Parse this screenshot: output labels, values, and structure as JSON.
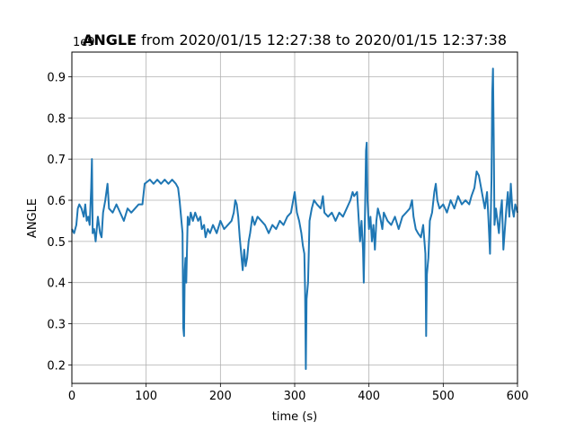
{
  "chart_data": {
    "type": "line",
    "title_bold": "ANGLE",
    "title_rest": " from 2020/01/15 12:27:38 to 2020/01/15 12:37:38",
    "xlabel": "time (s)",
    "ylabel": "ANGLE",
    "offset_label": "1e9",
    "xlim": [
      0,
      600
    ],
    "ylim": [
      0.155,
      0.96
    ],
    "xticks": [
      0,
      100,
      200,
      300,
      400,
      500,
      600
    ],
    "yticks": [
      0.2,
      0.3,
      0.4,
      0.5,
      0.6,
      0.7,
      0.8,
      0.9
    ],
    "grid": true,
    "line_color": "#1f77b4",
    "series": [
      {
        "points": [
          [
            0,
            0.53
          ],
          [
            3,
            0.52
          ],
          [
            6,
            0.54
          ],
          [
            8,
            0.58
          ],
          [
            10,
            0.59
          ],
          [
            13,
            0.58
          ],
          [
            16,
            0.56
          ],
          [
            18,
            0.59
          ],
          [
            20,
            0.55
          ],
          [
            22,
            0.56
          ],
          [
            24,
            0.54
          ],
          [
            26,
            0.63
          ],
          [
            27,
            0.7
          ],
          [
            28,
            0.52
          ],
          [
            30,
            0.53
          ],
          [
            32,
            0.5
          ],
          [
            35,
            0.56
          ],
          [
            38,
            0.52
          ],
          [
            40,
            0.51
          ],
          [
            42,
            0.57
          ],
          [
            45,
            0.6
          ],
          [
            48,
            0.64
          ],
          [
            50,
            0.58
          ],
          [
            55,
            0.57
          ],
          [
            60,
            0.59
          ],
          [
            65,
            0.57
          ],
          [
            70,
            0.55
          ],
          [
            75,
            0.58
          ],
          [
            80,
            0.57
          ],
          [
            85,
            0.58
          ],
          [
            90,
            0.59
          ],
          [
            95,
            0.59
          ],
          [
            98,
            0.64
          ],
          [
            105,
            0.65
          ],
          [
            110,
            0.64
          ],
          [
            115,
            0.65
          ],
          [
            120,
            0.64
          ],
          [
            125,
            0.65
          ],
          [
            130,
            0.64
          ],
          [
            135,
            0.65
          ],
          [
            140,
            0.64
          ],
          [
            143,
            0.63
          ],
          [
            145,
            0.6
          ],
          [
            147,
            0.56
          ],
          [
            149,
            0.52
          ],
          [
            150,
            0.29
          ],
          [
            151,
            0.27
          ],
          [
            152,
            0.43
          ],
          [
            153,
            0.46
          ],
          [
            154,
            0.4
          ],
          [
            156,
            0.56
          ],
          [
            158,
            0.54
          ],
          [
            160,
            0.57
          ],
          [
            163,
            0.55
          ],
          [
            166,
            0.57
          ],
          [
            170,
            0.55
          ],
          [
            173,
            0.56
          ],
          [
            175,
            0.53
          ],
          [
            178,
            0.54
          ],
          [
            180,
            0.51
          ],
          [
            183,
            0.53
          ],
          [
            186,
            0.52
          ],
          [
            190,
            0.54
          ],
          [
            195,
            0.52
          ],
          [
            200,
            0.55
          ],
          [
            205,
            0.53
          ],
          [
            210,
            0.54
          ],
          [
            215,
            0.55
          ],
          [
            218,
            0.57
          ],
          [
            220,
            0.6
          ],
          [
            222,
            0.59
          ],
          [
            224,
            0.56
          ],
          [
            226,
            0.51
          ],
          [
            228,
            0.47
          ],
          [
            230,
            0.43
          ],
          [
            232,
            0.48
          ],
          [
            234,
            0.44
          ],
          [
            236,
            0.46
          ],
          [
            238,
            0.5
          ],
          [
            240,
            0.52
          ],
          [
            243,
            0.56
          ],
          [
            246,
            0.54
          ],
          [
            250,
            0.56
          ],
          [
            255,
            0.55
          ],
          [
            260,
            0.54
          ],
          [
            265,
            0.52
          ],
          [
            270,
            0.54
          ],
          [
            275,
            0.53
          ],
          [
            280,
            0.55
          ],
          [
            285,
            0.54
          ],
          [
            290,
            0.56
          ],
          [
            295,
            0.57
          ],
          [
            298,
            0.6
          ],
          [
            300,
            0.62
          ],
          [
            303,
            0.57
          ],
          [
            306,
            0.55
          ],
          [
            309,
            0.52
          ],
          [
            311,
            0.49
          ],
          [
            313,
            0.47
          ],
          [
            314,
            0.38
          ],
          [
            315,
            0.19
          ],
          [
            316,
            0.36
          ],
          [
            318,
            0.4
          ],
          [
            320,
            0.55
          ],
          [
            323,
            0.58
          ],
          [
            326,
            0.6
          ],
          [
            330,
            0.59
          ],
          [
            335,
            0.58
          ],
          [
            338,
            0.61
          ],
          [
            340,
            0.57
          ],
          [
            345,
            0.56
          ],
          [
            350,
            0.57
          ],
          [
            355,
            0.55
          ],
          [
            360,
            0.57
          ],
          [
            365,
            0.56
          ],
          [
            370,
            0.58
          ],
          [
            375,
            0.6
          ],
          [
            378,
            0.62
          ],
          [
            380,
            0.61
          ],
          [
            384,
            0.62
          ],
          [
            386,
            0.56
          ],
          [
            388,
            0.5
          ],
          [
            390,
            0.55
          ],
          [
            392,
            0.48
          ],
          [
            393,
            0.4
          ],
          [
            395,
            0.6
          ],
          [
            396,
            0.72
          ],
          [
            397,
            0.74
          ],
          [
            398,
            0.6
          ],
          [
            400,
            0.53
          ],
          [
            402,
            0.56
          ],
          [
            404,
            0.5
          ],
          [
            406,
            0.54
          ],
          [
            408,
            0.48
          ],
          [
            410,
            0.55
          ],
          [
            412,
            0.58
          ],
          [
            415,
            0.56
          ],
          [
            418,
            0.53
          ],
          [
            420,
            0.57
          ],
          [
            425,
            0.55
          ],
          [
            430,
            0.54
          ],
          [
            435,
            0.56
          ],
          [
            440,
            0.53
          ],
          [
            445,
            0.56
          ],
          [
            450,
            0.57
          ],
          [
            455,
            0.58
          ],
          [
            458,
            0.6
          ],
          [
            460,
            0.56
          ],
          [
            463,
            0.53
          ],
          [
            466,
            0.52
          ],
          [
            470,
            0.51
          ],
          [
            473,
            0.54
          ],
          [
            476,
            0.47
          ],
          [
            477,
            0.27
          ],
          [
            478,
            0.42
          ],
          [
            480,
            0.46
          ],
          [
            482,
            0.55
          ],
          [
            485,
            0.57
          ],
          [
            488,
            0.62
          ],
          [
            490,
            0.64
          ],
          [
            492,
            0.6
          ],
          [
            495,
            0.58
          ],
          [
            500,
            0.59
          ],
          [
            505,
            0.57
          ],
          [
            510,
            0.6
          ],
          [
            515,
            0.58
          ],
          [
            520,
            0.61
          ],
          [
            525,
            0.59
          ],
          [
            530,
            0.6
          ],
          [
            535,
            0.59
          ],
          [
            538,
            0.61
          ],
          [
            542,
            0.63
          ],
          [
            545,
            0.67
          ],
          [
            548,
            0.66
          ],
          [
            550,
            0.64
          ],
          [
            553,
            0.61
          ],
          [
            556,
            0.58
          ],
          [
            559,
            0.62
          ],
          [
            561,
            0.55
          ],
          [
            563,
            0.47
          ],
          [
            565,
            0.65
          ],
          [
            566,
            0.86
          ],
          [
            567,
            0.92
          ],
          [
            568,
            0.75
          ],
          [
            569,
            0.54
          ],
          [
            571,
            0.58
          ],
          [
            573,
            0.55
          ],
          [
            575,
            0.52
          ],
          [
            577,
            0.57
          ],
          [
            579,
            0.6
          ],
          [
            581,
            0.48
          ],
          [
            583,
            0.53
          ],
          [
            585,
            0.58
          ],
          [
            587,
            0.62
          ],
          [
            589,
            0.56
          ],
          [
            591,
            0.64
          ],
          [
            593,
            0.58
          ],
          [
            595,
            0.56
          ],
          [
            597,
            0.59
          ],
          [
            600,
            0.57
          ]
        ]
      }
    ]
  }
}
